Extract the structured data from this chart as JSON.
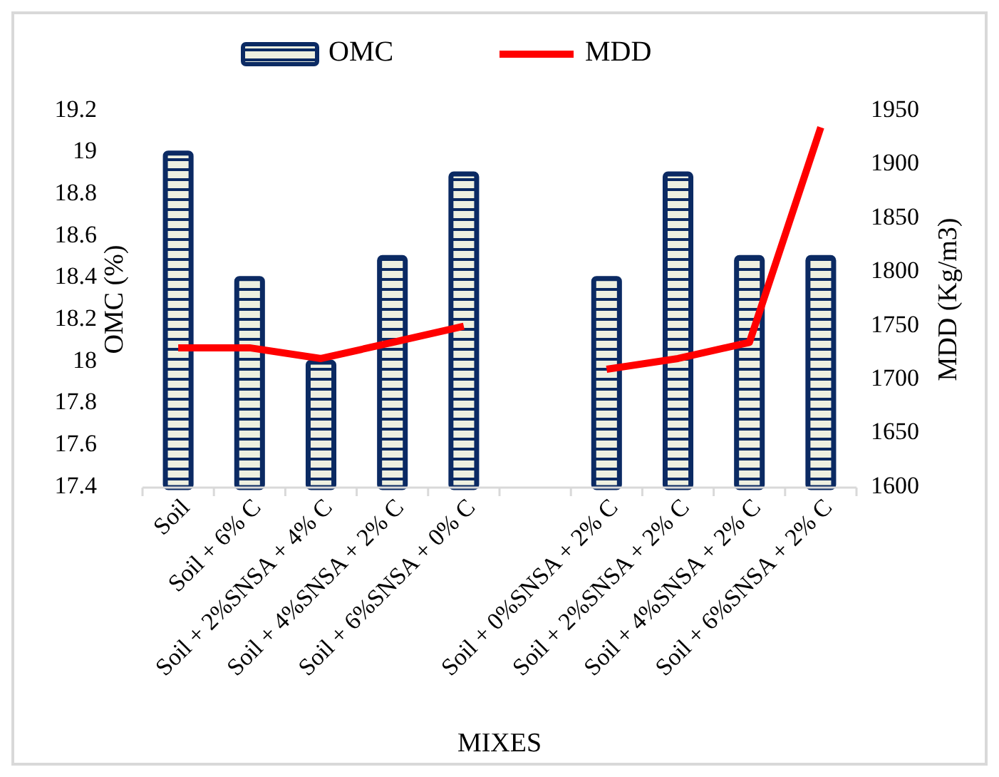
{
  "chart_data": {
    "type": "bar",
    "xlabel": "MIXES",
    "ylabel": "OMC (%)",
    "y2label": "MDD (Kg/m3)",
    "categories": [
      "Soil",
      "Soil + 6% C",
      "Soil + 2%SNSA + 4% C",
      "Soil + 4%SNSA + 2% C",
      "Soil + 6%SNSA + 0% C",
      null,
      "Soil + 0%SNSA + 2% C",
      "Soil + 2%SNSA + 2% C",
      "Soil + 4%SNSA + 2% C",
      "Soil + 6%SNSA + 2% C"
    ],
    "series": [
      {
        "name": "OMC",
        "color": "#0b2a63",
        "values": [
          19,
          18.4,
          18.0,
          18.5,
          18.9,
          null,
          18.4,
          18.9,
          18.5,
          18.5
        ]
      },
      {
        "name": "MDD",
        "type": "line",
        "axis": "y2",
        "color": "#ff0000",
        "values": [
          1730,
          1730,
          1720,
          1735,
          1750,
          null,
          1710,
          1720,
          1735,
          1935
        ]
      }
    ],
    "ylim": [
      17.4,
      19.2
    ],
    "yticks": [
      17.4,
      17.6,
      17.8,
      18,
      18.2,
      18.4,
      18.6,
      18.8,
      19,
      19.2
    ],
    "y2lim": [
      1600,
      1950
    ],
    "y2ticks": [
      1600,
      1650,
      1700,
      1750,
      1800,
      1850,
      1900,
      1950
    ],
    "grid": false,
    "legend": "top",
    "marker": "none",
    "line_style": "solid"
  }
}
